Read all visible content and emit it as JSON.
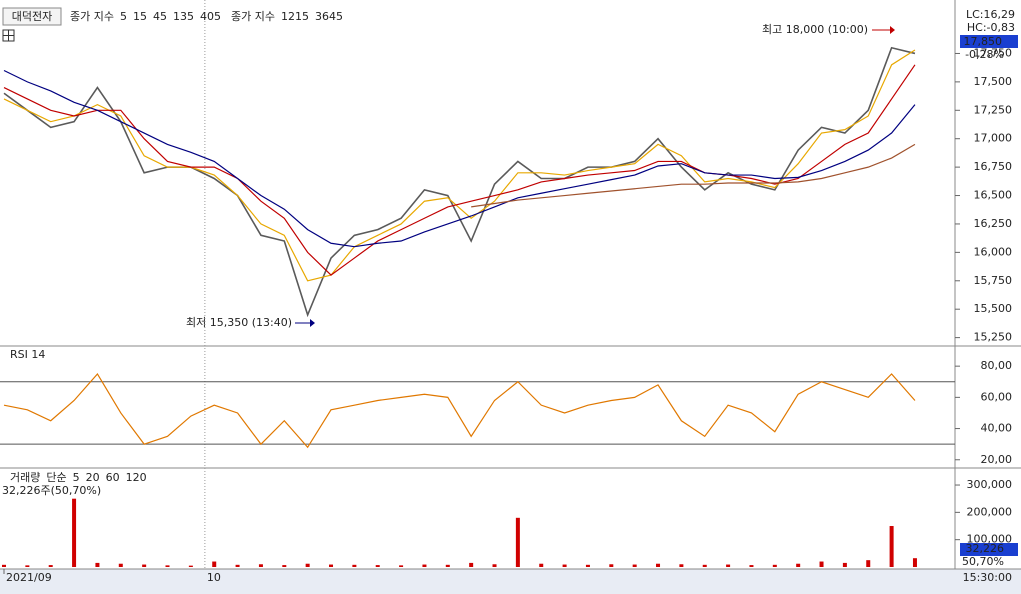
{
  "stock_name": "대덕전자",
  "chart_data": [
    {
      "type": "line",
      "legend_prefix": "종가 지수",
      "legend2_prefix": "종가 지수",
      "legend2_periods": [
        "1215",
        "3645"
      ],
      "series": [
        {
          "name": "5",
          "color": "#5a5a5a",
          "values": [
            17400,
            17250,
            17100,
            17150,
            17450,
            17150,
            16700,
            16750,
            16750,
            16650,
            16500,
            16150,
            16100,
            15450,
            15950,
            16150,
            16200,
            16300,
            16550,
            16500,
            16100,
            16600,
            16800,
            16650,
            16650,
            16750,
            16750,
            16800,
            17000,
            16750,
            16550,
            16700,
            16600,
            16550,
            16900,
            17100,
            17050,
            17250,
            17800,
            17750
          ]
        },
        {
          "name": "15",
          "color": "#e8a800",
          "values": [
            17350,
            17250,
            17150,
            17200,
            17300,
            17200,
            16850,
            16750,
            16750,
            16680,
            16500,
            16250,
            16150,
            15750,
            15800,
            16050,
            16150,
            16250,
            16450,
            16480,
            16300,
            16450,
            16700,
            16700,
            16680,
            16720,
            16750,
            16780,
            16950,
            16850,
            16620,
            16650,
            16620,
            16570,
            16780,
            17050,
            17080,
            17200,
            17650,
            17780
          ]
        },
        {
          "name": "45",
          "color": "#c00000",
          "values": [
            17450,
            17350,
            17250,
            17200,
            17250,
            17250,
            17000,
            16800,
            16750,
            16750,
            16650,
            16450,
            16300,
            16000,
            15800,
            15950,
            16100,
            16200,
            16300,
            16400,
            16450,
            16500,
            16550,
            16620,
            16650,
            16680,
            16700,
            16720,
            16800,
            16800,
            16700,
            16680,
            16650,
            16600,
            16650,
            16800,
            16950,
            17050,
            17350,
            17650
          ]
        },
        {
          "name": "135",
          "color": "#000080",
          "values": [
            17600,
            17500,
            17420,
            17320,
            17250,
            17150,
            17050,
            16950,
            16880,
            16800,
            16650,
            16500,
            16380,
            16200,
            16080,
            16050,
            16080,
            16100,
            16180,
            16250,
            16320,
            16400,
            16480,
            16520,
            16560,
            16600,
            16640,
            16680,
            16760,
            16780,
            16700,
            16680,
            16680,
            16650,
            16660,
            16720,
            16800,
            16900,
            17050,
            17300
          ]
        },
        {
          "name": "405",
          "color": "#a0522d",
          "values": [
            null,
            null,
            null,
            null,
            null,
            null,
            null,
            null,
            null,
            null,
            null,
            null,
            null,
            null,
            null,
            null,
            null,
            null,
            null,
            null,
            16400,
            16430,
            16460,
            16480,
            16500,
            16520,
            16540,
            16560,
            16580,
            16600,
            16600,
            16610,
            16610,
            16610,
            16620,
            16650,
            16700,
            16750,
            16830,
            16950
          ]
        }
      ],
      "ylim": [
        15185,
        18150
      ],
      "yticks": [
        {
          "value": 15250,
          "label": "15,250"
        },
        {
          "value": 15500,
          "label": "15,500"
        },
        {
          "value": 15750,
          "label": "15,750"
        },
        {
          "value": 16000,
          "label": "16,000"
        },
        {
          "value": 16250,
          "label": "16,250"
        },
        {
          "value": 16500,
          "label": "16,500"
        },
        {
          "value": 16750,
          "label": "16,750"
        },
        {
          "value": 17000,
          "label": "17,000"
        },
        {
          "value": 17250,
          "label": "17,250"
        },
        {
          "value": 17500,
          "label": "17,500"
        },
        {
          "value": 17750,
          "label": "17,750"
        }
      ],
      "high_label": "최고 18,000 (10:00)",
      "low_label": "최저 15,350 (13:40)",
      "lc_label": "LC:16,29",
      "hc_label": "HC:-0,83",
      "last_price_label": "17,850",
      "change_label": "-0,28%"
    },
    {
      "type": "line",
      "title": "RSI 14",
      "series": [
        {
          "name": "RSI 14",
          "color": "#e07800",
          "values": [
            55,
            52,
            45,
            58,
            75,
            50,
            30,
            35,
            48,
            55,
            50,
            30,
            45,
            28,
            52,
            55,
            58,
            60,
            62,
            60,
            35,
            58,
            70,
            55,
            50,
            55,
            58,
            60,
            68,
            45,
            35,
            55,
            50,
            38,
            62,
            70,
            65,
            60,
            75,
            58
          ]
        }
      ],
      "levels": [
        30,
        70
      ],
      "ylim": [
        16,
        91
      ],
      "yticks": [
        {
          "value": 20,
          "label": "20,00"
        },
        {
          "value": 40,
          "label": "40,00"
        },
        {
          "value": 60,
          "label": "60,00"
        },
        {
          "value": 80,
          "label": "80,00"
        }
      ]
    },
    {
      "type": "bar",
      "series": [
        {
          "name": "거래량",
          "color": "#d00000",
          "values": [
            8000,
            6000,
            7000,
            250000,
            15000,
            12000,
            9000,
            6000,
            5000,
            20000,
            8000,
            10000,
            7000,
            12000,
            9000,
            8000,
            7000,
            6000,
            9000,
            8000,
            15000,
            10000,
            180000,
            12000,
            9000,
            8000,
            10000,
            9000,
            12000,
            10000,
            8000,
            9000,
            7000,
            8000,
            12000,
            20000,
            15000,
            25000,
            150000,
            32226
          ]
        }
      ],
      "ma_prefix": "단순",
      "ma_periods": [
        "5",
        "20",
        "60",
        "120"
      ],
      "ma_colors": [
        "#c000c0",
        "#e8a800",
        "#008000",
        "#555555"
      ],
      "summary": "32,226주(50,70%)",
      "last_value_label": "32,226",
      "last_ratio_label": "50,70%",
      "ylim": [
        0,
        355000
      ],
      "yticks": [
        {
          "value": 100000,
          "label": "100,000"
        },
        {
          "value": 200000,
          "label": "200,000"
        },
        {
          "value": 300000,
          "label": "300,000"
        }
      ],
      "xlim": [
        0,
        40.5
      ],
      "xticks": [
        {
          "value": 0,
          "label": "2021/09"
        },
        {
          "value": 8.6,
          "label": "10"
        }
      ],
      "time_label": "15:30:00"
    }
  ]
}
